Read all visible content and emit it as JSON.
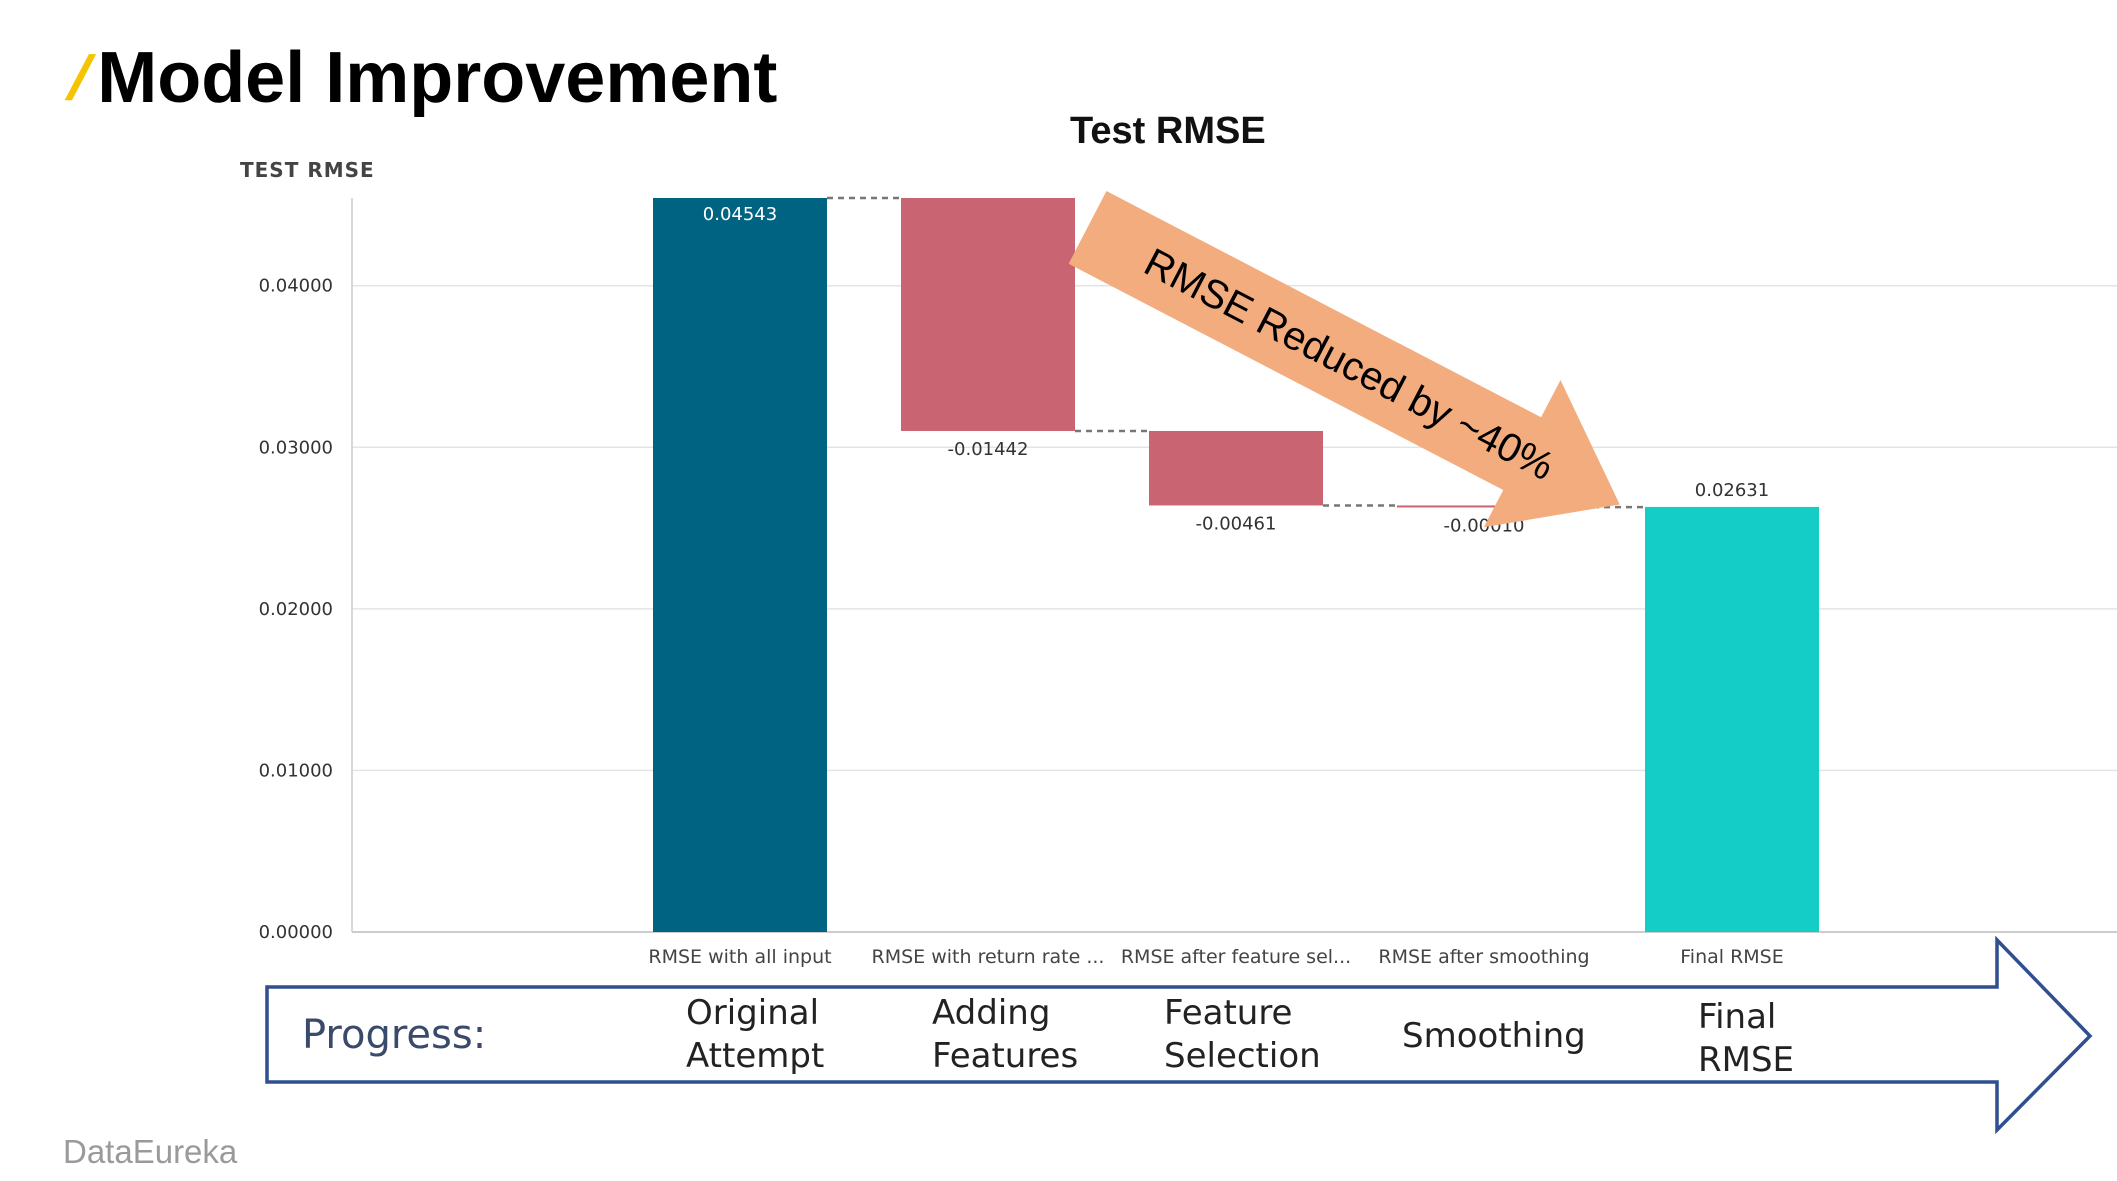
{
  "slide": {
    "title": "Model Improvement",
    "brand": "DataEureka"
  },
  "chart_data": {
    "type": "waterfall",
    "title": "Test RMSE",
    "ylabel": "TEST RMSE",
    "ylim": [
      0,
      0.04543
    ],
    "yticks": [
      "0.00000",
      "0.01000",
      "0.02000",
      "0.03000",
      "0.04000"
    ],
    "grid": true,
    "categories": [
      "RMSE with all input",
      "RMSE with return rate ...",
      "RMSE after feature sel...",
      "RMSE after smoothing",
      "Final RMSE"
    ],
    "values": [
      0.04543,
      -0.01442,
      -0.00461,
      -0.0001,
      0.02631
    ],
    "value_labels": [
      "0.04543",
      "-0.01442",
      "-0.00461",
      "-0.00010",
      "0.02631"
    ],
    "kinds": [
      "total",
      "decrease",
      "decrease",
      "decrease",
      "total"
    ],
    "colors": {
      "start_total": "#006382",
      "decrease": "#c96473",
      "end_total": "#14cdc6"
    },
    "annotation": "RMSE Reduced by ~40%",
    "annotation_color": "#f2ac7e"
  },
  "progress": {
    "label": "Progress:",
    "steps": [
      [
        "Original",
        "Attempt"
      ],
      [
        "Adding",
        "Features"
      ],
      [
        "Feature",
        "Selection"
      ],
      [
        "Smoothing"
      ],
      [
        "Final",
        "RMSE"
      ]
    ],
    "border_color": "#2f4f8f"
  }
}
